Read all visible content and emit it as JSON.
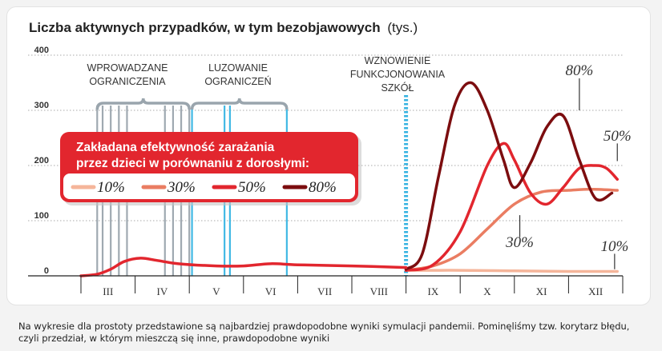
{
  "chart_data": {
    "type": "line",
    "title": "Liczba aktywnych przypadków, w tym bezobjawowych",
    "title_unit": "(tys.)",
    "ylim": [
      0,
      400
    ],
    "yticks": [
      0,
      100,
      200,
      300,
      400
    ],
    "grid": true,
    "x_categories": [
      "III",
      "IV",
      "V",
      "VI",
      "VII",
      "VIII",
      "IX",
      "X",
      "XI",
      "XII"
    ],
    "xlim": [
      0,
      10
    ],
    "annotations": [
      {
        "text": [
          "WPROWADZANE",
          "OGRANICZENIA"
        ],
        "color": "#9aa5ad",
        "lines_x": [
          0.3,
          0.4,
          0.55,
          0.7,
          0.85,
          1.55,
          1.7,
          1.85,
          2.0
        ]
      },
      {
        "text": [
          "LUZOWANIE",
          "OGRANICZEŃ"
        ],
        "color": "#38b6e3",
        "lines_x": [
          2.05,
          2.65,
          2.75,
          3.8
        ]
      },
      {
        "text": [
          "WZNOWIENIE",
          "FUNKCJONOWANIA",
          "SZKÓŁ"
        ],
        "color": "#29aee0",
        "lines_x": [
          6.0
        ]
      }
    ],
    "legend": {
      "title": [
        "Zakładana efektywność zarażania",
        "przez dzieci w porównaniu z dorosłymi:"
      ],
      "placement": "center-left",
      "entries": [
        {
          "label": "10%",
          "color": "#f5b59a"
        },
        {
          "label": "30%",
          "color": "#ea7d62"
        },
        {
          "label": "50%",
          "color": "#e2262e"
        },
        {
          "label": "80%",
          "color": "#7c0d0f"
        }
      ]
    },
    "series": [
      {
        "name": "10%",
        "color": "#f5b59a",
        "x": [
          6.0,
          6.5,
          7.0,
          8.0,
          9.0,
          9.9
        ],
        "y": [
          10,
          10,
          10,
          9,
          8,
          8
        ]
      },
      {
        "name": "30%",
        "color": "#ea7d62",
        "x": [
          6.0,
          6.5,
          7.0,
          7.5,
          8.0,
          8.5,
          9.0,
          9.4,
          9.9
        ],
        "y": [
          10,
          18,
          40,
          85,
          130,
          152,
          155,
          157,
          155
        ]
      },
      {
        "name": "50%",
        "color": "#e2262e",
        "x": [
          6.0,
          6.5,
          7.0,
          7.5,
          7.8,
          8.0,
          8.3,
          8.6,
          8.9,
          9.2,
          9.5,
          9.7,
          9.9
        ],
        "y": [
          10,
          20,
          80,
          200,
          240,
          210,
          150,
          130,
          160,
          195,
          200,
          195,
          175
        ]
      },
      {
        "name": "80%",
        "color": "#7c0d0f",
        "x": [
          6.0,
          6.3,
          6.6,
          6.9,
          7.2,
          7.5,
          7.8,
          8.0,
          8.3,
          8.6,
          8.9,
          9.2,
          9.5,
          9.8
        ],
        "y": [
          12,
          40,
          180,
          310,
          350,
          300,
          210,
          160,
          205,
          270,
          290,
          210,
          140,
          150
        ]
      },
      {
        "name": "before",
        "color": "#e2262e",
        "x": [
          0.0,
          0.3,
          0.55,
          0.8,
          1.1,
          1.4,
          1.8,
          2.5,
          3.0,
          3.5,
          4.0,
          5.0,
          6.0
        ],
        "y": [
          0,
          3,
          12,
          26,
          32,
          28,
          22,
          18,
          18,
          22,
          20,
          18,
          15
        ]
      }
    ],
    "end_labels": [
      {
        "text": "80%",
        "x": 9.2,
        "y": 364
      },
      {
        "text": "50%",
        "x": 9.9,
        "y": 245
      },
      {
        "text": "30%",
        "x": 8.1,
        "y": 52
      },
      {
        "text": "10%",
        "x": 9.85,
        "y": 45
      }
    ]
  },
  "footnote": [
    "Na wykresie dla prostoty przedstawione są najbardziej prawdopodobne wyniki symulacji pandemii. Pominęliśmy tzw. korytarz błędu,",
    "czyli przedział, w którym mieszczą się inne, prawdopodobne wyniki"
  ]
}
